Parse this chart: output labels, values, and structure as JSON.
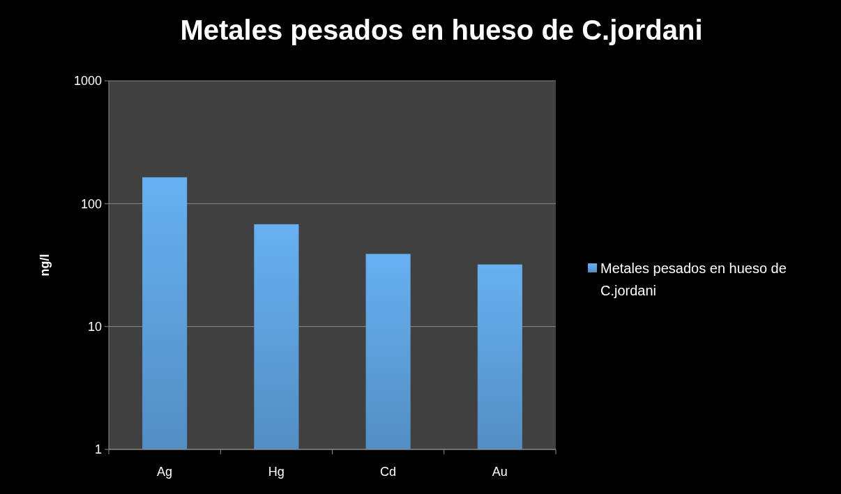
{
  "chart_data": {
    "type": "bar",
    "title": "Metales pesados en hueso de C.jordani",
    "ylabel": "ng/l",
    "categories": [
      "Ag",
      "Hg",
      "Cd",
      "Au"
    ],
    "series": [
      {
        "name": "Metales pesados en hueso de C.jordani",
        "color": "#5b9bd5",
        "values": [
          164,
          68,
          39,
          32
        ]
      }
    ],
    "ylim": [
      1,
      1000
    ],
    "yticks": [
      1,
      10,
      100,
      1000
    ],
    "log": "y",
    "grid": "y",
    "legend": "right"
  }
}
